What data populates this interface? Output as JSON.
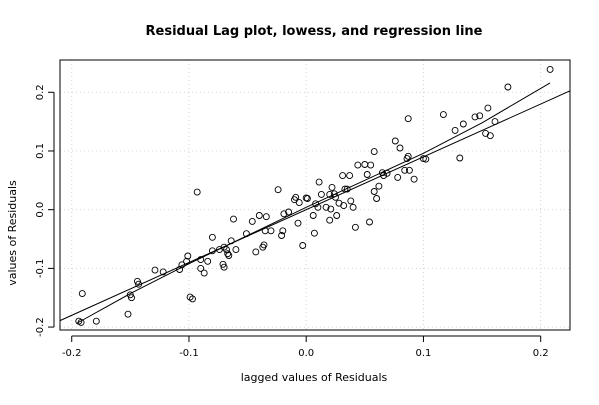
{
  "chart_data": {
    "type": "scatter",
    "title": "Residual Lag plot, lowess, and regression line",
    "xlabel": "lagged values of Residuals",
    "ylabel": "values of Residuals",
    "xlim": [
      -0.21,
      0.225
    ],
    "ylim": [
      -0.205,
      0.255
    ],
    "xticks": [
      -0.2,
      -0.1,
      0.0,
      0.1,
      0.2
    ],
    "xtick_labels": [
      "-0.2",
      "-0.1",
      "0.0",
      "0.1",
      "0.2"
    ],
    "yticks": [
      -0.2,
      -0.1,
      0.0,
      0.1,
      0.2
    ],
    "ytick_labels": [
      "-0.2",
      "-0.1",
      "0.0",
      "0.1",
      "0.2"
    ],
    "grid": true,
    "points": [
      [
        -0.191,
        -0.143
      ],
      [
        -0.194,
        -0.19
      ],
      [
        -0.192,
        -0.192
      ],
      [
        -0.179,
        -0.19
      ],
      [
        -0.152,
        -0.178
      ],
      [
        -0.15,
        -0.145
      ],
      [
        -0.149,
        -0.15
      ],
      [
        -0.144,
        -0.122
      ],
      [
        -0.143,
        -0.127
      ],
      [
        -0.129,
        -0.103
      ],
      [
        -0.122,
        -0.106
      ],
      [
        -0.108,
        -0.102
      ],
      [
        -0.106,
        -0.094
      ],
      [
        -0.102,
        -0.088
      ],
      [
        -0.101,
        -0.079
      ],
      [
        -0.099,
        -0.149
      ],
      [
        -0.097,
        -0.152
      ],
      [
        -0.093,
        0.03
      ],
      [
        -0.09,
        -0.085
      ],
      [
        -0.09,
        -0.1
      ],
      [
        -0.087,
        -0.108
      ],
      [
        -0.084,
        -0.088
      ],
      [
        -0.08,
        -0.07
      ],
      [
        -0.08,
        -0.047
      ],
      [
        -0.074,
        -0.068
      ],
      [
        -0.071,
        -0.093
      ],
      [
        -0.07,
        -0.064
      ],
      [
        -0.07,
        -0.098
      ],
      [
        -0.068,
        -0.068
      ],
      [
        -0.067,
        -0.075
      ],
      [
        -0.066,
        -0.078
      ],
      [
        -0.064,
        -0.053
      ],
      [
        -0.062,
        -0.016
      ],
      [
        -0.06,
        -0.068
      ],
      [
        -0.051,
        -0.041
      ],
      [
        -0.046,
        -0.02
      ],
      [
        -0.043,
        -0.072
      ],
      [
        -0.04,
        -0.01
      ],
      [
        -0.037,
        -0.064
      ],
      [
        -0.036,
        -0.06
      ],
      [
        -0.035,
        -0.036
      ],
      [
        -0.034,
        -0.012
      ],
      [
        -0.03,
        -0.036
      ],
      [
        -0.024,
        0.034
      ],
      [
        -0.021,
        -0.044
      ],
      [
        -0.02,
        -0.036
      ],
      [
        -0.019,
        -0.007
      ],
      [
        -0.015,
        -0.004
      ],
      [
        -0.01,
        0.017
      ],
      [
        -0.009,
        0.021
      ],
      [
        -0.007,
        -0.023
      ],
      [
        -0.006,
        0.012
      ],
      [
        -0.003,
        -0.061
      ],
      [
        0.0,
        0.02
      ],
      [
        0.001,
        0.019
      ],
      [
        0.006,
        -0.01
      ],
      [
        0.007,
        -0.04
      ],
      [
        0.008,
        0.01
      ],
      [
        0.01,
        0.004
      ],
      [
        0.011,
        0.047
      ],
      [
        0.013,
        0.026
      ],
      [
        0.017,
        0.004
      ],
      [
        0.02,
        -0.018
      ],
      [
        0.02,
        0.026
      ],
      [
        0.021,
        0.001
      ],
      [
        0.022,
        0.038
      ],
      [
        0.024,
        0.027
      ],
      [
        0.025,
        0.021
      ],
      [
        0.026,
        -0.01
      ],
      [
        0.028,
        0.011
      ],
      [
        0.031,
        0.058
      ],
      [
        0.032,
        0.007
      ],
      [
        0.033,
        0.035
      ],
      [
        0.035,
        0.035
      ],
      [
        0.037,
        0.058
      ],
      [
        0.038,
        0.015
      ],
      [
        0.04,
        0.004
      ],
      [
        0.042,
        -0.03
      ],
      [
        0.044,
        0.076
      ],
      [
        0.05,
        0.077
      ],
      [
        0.052,
        0.06
      ],
      [
        0.054,
        -0.021
      ],
      [
        0.055,
        0.076
      ],
      [
        0.058,
        0.031
      ],
      [
        0.058,
        0.099
      ],
      [
        0.06,
        0.019
      ],
      [
        0.062,
        0.04
      ],
      [
        0.065,
        0.063
      ],
      [
        0.066,
        0.058
      ],
      [
        0.069,
        0.062
      ],
      [
        0.076,
        0.117
      ],
      [
        0.078,
        0.055
      ],
      [
        0.08,
        0.105
      ],
      [
        0.084,
        0.067
      ],
      [
        0.086,
        0.087
      ],
      [
        0.087,
        0.155
      ],
      [
        0.087,
        0.091
      ],
      [
        0.088,
        0.067
      ],
      [
        0.092,
        0.052
      ],
      [
        0.1,
        0.087
      ],
      [
        0.102,
        0.086
      ],
      [
        0.117,
        0.162
      ],
      [
        0.127,
        0.135
      ],
      [
        0.131,
        0.088
      ],
      [
        0.134,
        0.146
      ],
      [
        0.144,
        0.158
      ],
      [
        0.148,
        0.16
      ],
      [
        0.153,
        0.13
      ],
      [
        0.155,
        0.173
      ],
      [
        0.157,
        0.126
      ],
      [
        0.161,
        0.15
      ],
      [
        0.172,
        0.209
      ],
      [
        0.208,
        0.239
      ]
    ],
    "regression_line": {
      "slope": 0.9,
      "intercept": 0.0
    },
    "lowess_line": [
      [
        -0.196,
        -0.194
      ],
      [
        -0.15,
        -0.143
      ],
      [
        -0.1,
        -0.092
      ],
      [
        -0.05,
        -0.044
      ],
      [
        0.0,
        0.004
      ],
      [
        0.05,
        0.05
      ],
      [
        0.1,
        0.096
      ],
      [
        0.15,
        0.148
      ],
      [
        0.208,
        0.216
      ]
    ]
  }
}
